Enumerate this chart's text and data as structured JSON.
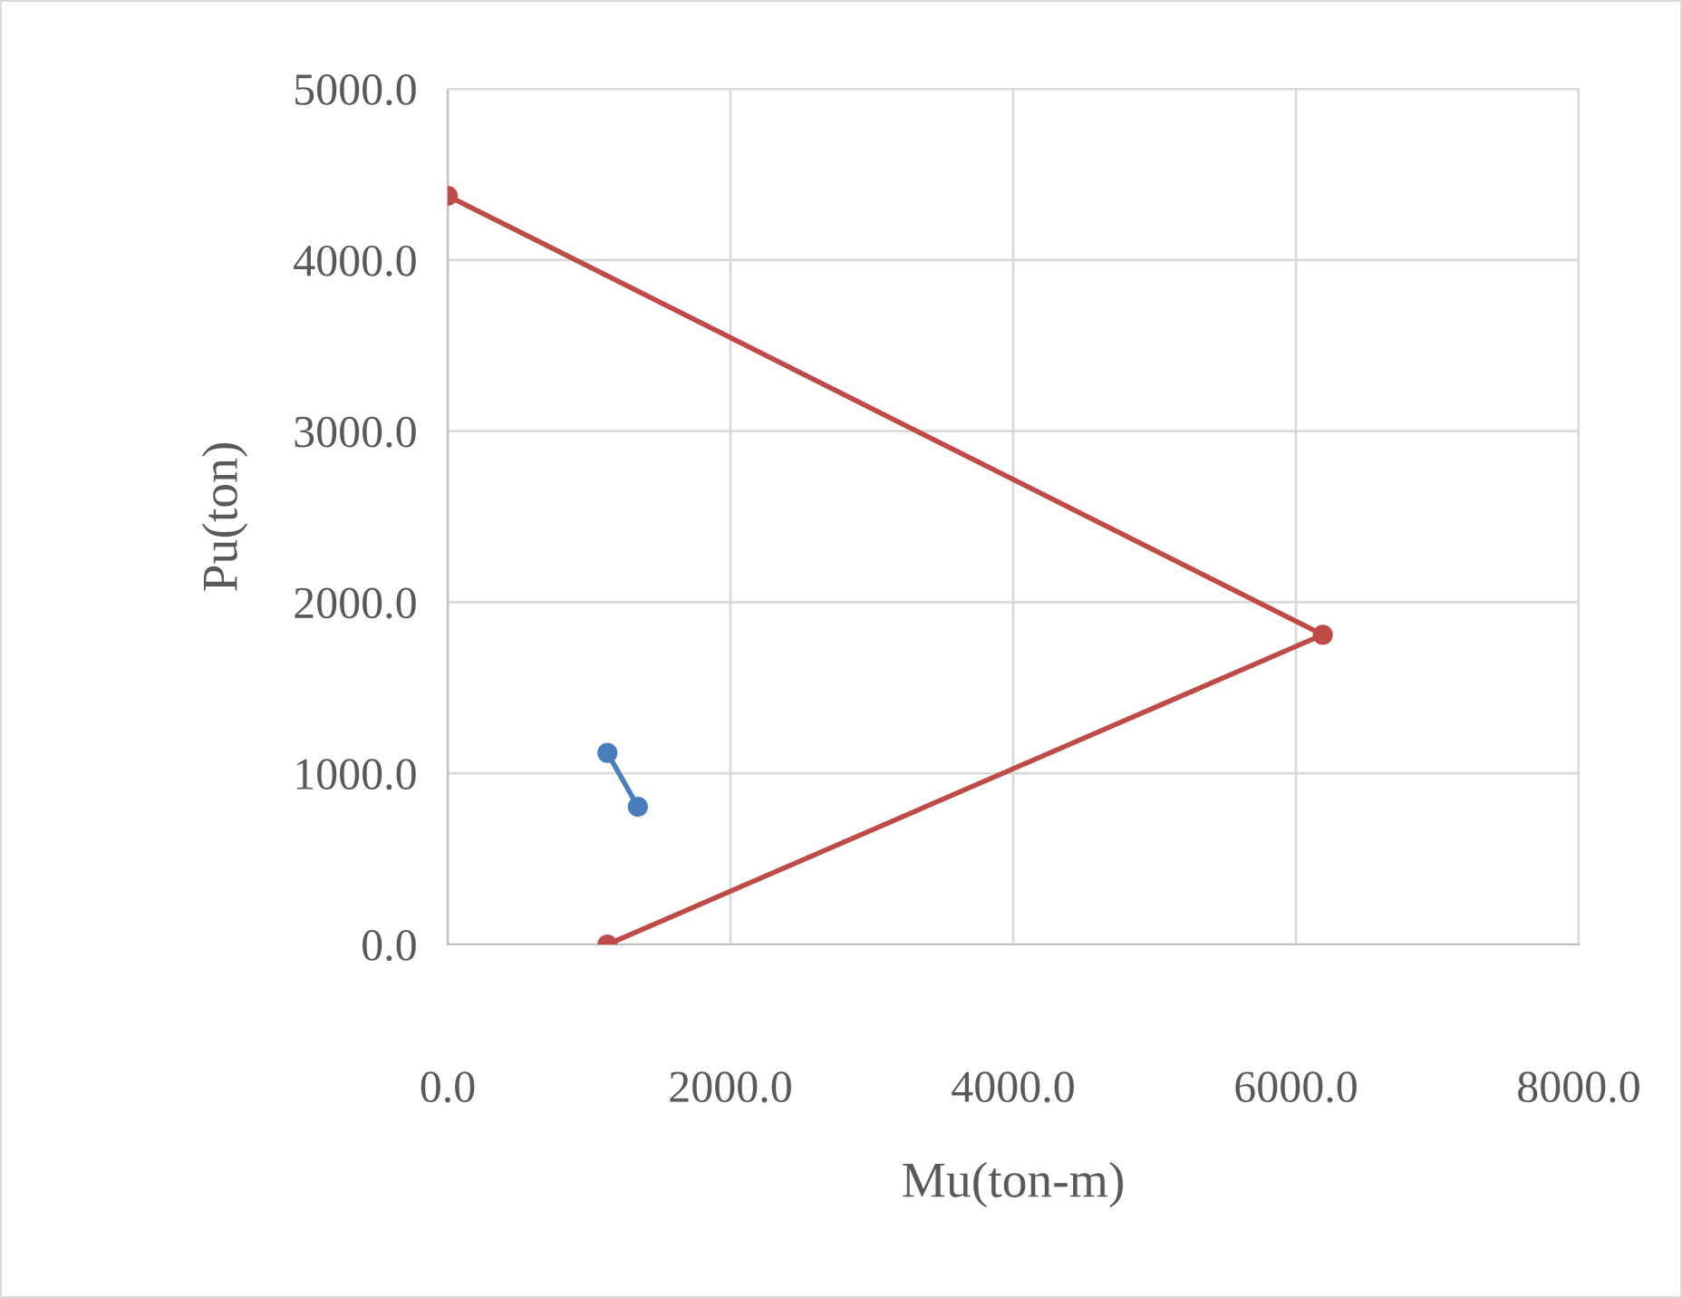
{
  "chart_data": {
    "type": "line",
    "xlabel": "Mu(ton-m)",
    "ylabel": "Pu(ton)",
    "series": [
      {
        "color": "#be4b48",
        "x": [
          0,
          6190,
          1130
        ],
        "values": [
          4375,
          1810,
          0
        ]
      },
      {
        "color": "#4a7ebb",
        "x": [
          1130,
          1345
        ],
        "values": [
          1120,
          805
        ]
      }
    ],
    "xlim": [
      0,
      8000
    ],
    "ylim": [
      0,
      5000
    ],
    "xticks": [
      {
        "value": 0,
        "label": "0.0"
      },
      {
        "value": 2000,
        "label": "2000.0"
      },
      {
        "value": 4000,
        "label": "4000.0"
      },
      {
        "value": 6000,
        "label": "6000.0"
      },
      {
        "value": 8000,
        "label": "8000.0"
      }
    ],
    "yticks": [
      {
        "value": 0,
        "label": "0.0"
      },
      {
        "value": 1000,
        "label": "1000.0"
      },
      {
        "value": 2000,
        "label": "2000.0"
      },
      {
        "value": 3000,
        "label": "3000.0"
      },
      {
        "value": 4000,
        "label": "4000.0"
      },
      {
        "value": 5000,
        "label": "5000.0"
      }
    ],
    "grid": true,
    "marker": "circle",
    "line_style": "solid"
  }
}
